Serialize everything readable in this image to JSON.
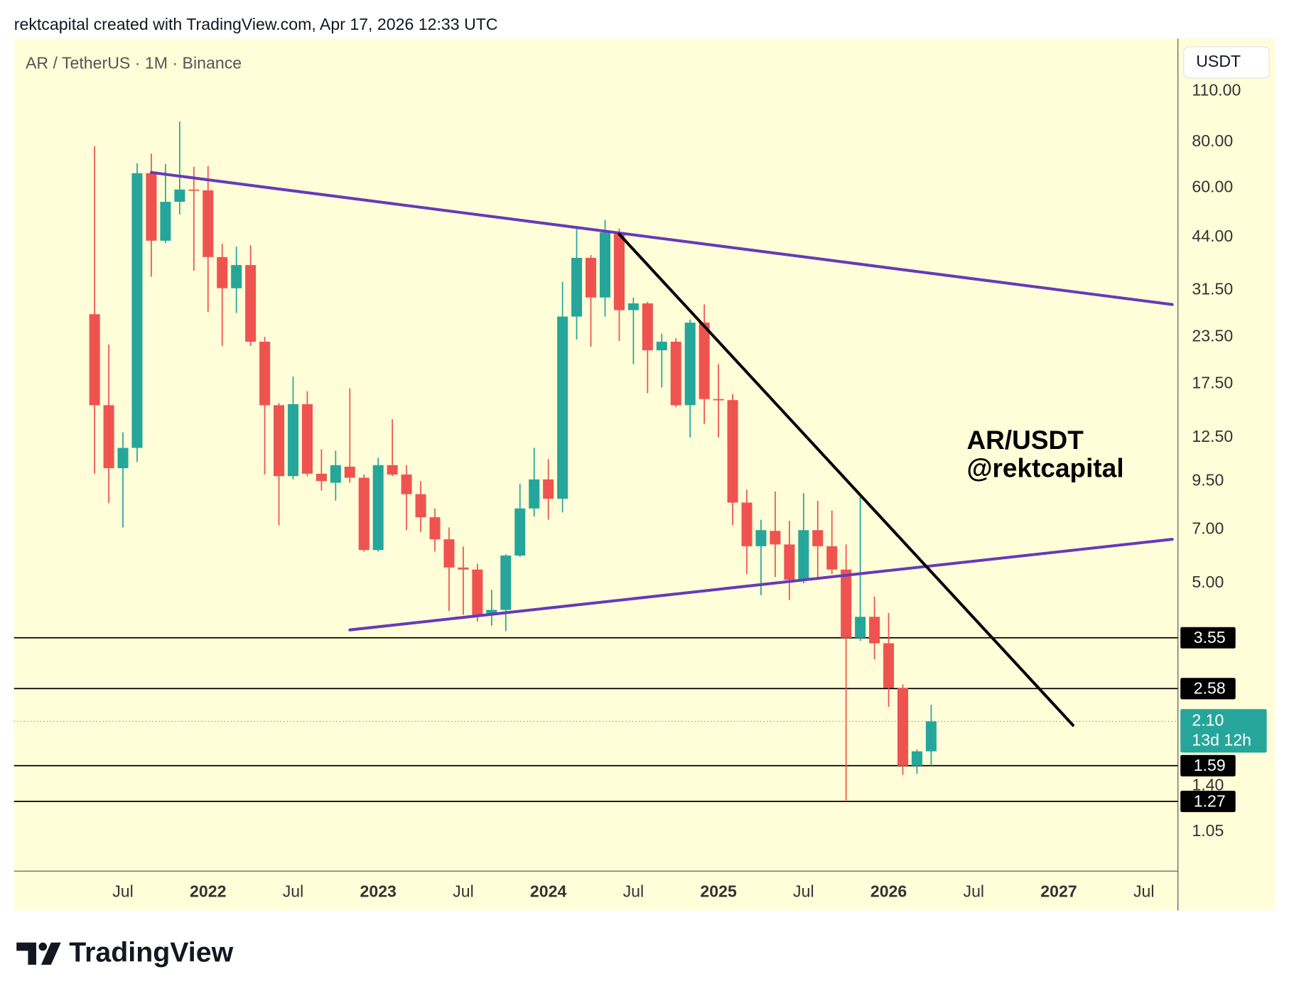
{
  "header": "rektcapital created with TradingView.com, Apr 17, 2026 12:33 UTC",
  "footer": "TradingView",
  "chart_data": {
    "type": "candlestick",
    "symbol": "AR / TetherUS · 1M · Binance",
    "currency": "USDT",
    "annotation": [
      "AR/USDT",
      "@rektcapital"
    ],
    "log_scale": true,
    "grid": false,
    "up_color": "#26a69a",
    "down_color": "#ef5350",
    "x": [
      "2021-05",
      "2021-06",
      "2021-07",
      "2021-08",
      "2021-09",
      "2021-10",
      "2021-11",
      "2021-12",
      "2022-01",
      "2022-02",
      "2022-03",
      "2022-04",
      "2022-05",
      "2022-06",
      "2022-07",
      "2022-08",
      "2022-09",
      "2022-10",
      "2022-11",
      "2022-12",
      "2023-01",
      "2023-02",
      "2023-03",
      "2023-04",
      "2023-05",
      "2023-06",
      "2023-07",
      "2023-08",
      "2023-09",
      "2023-10",
      "2023-11",
      "2023-12",
      "2024-01",
      "2024-02",
      "2024-03",
      "2024-04",
      "2024-05",
      "2024-06",
      "2024-07",
      "2024-08",
      "2024-09",
      "2024-10",
      "2024-11",
      "2024-12",
      "2025-01",
      "2025-02",
      "2025-03",
      "2025-04",
      "2025-05",
      "2025-06",
      "2025-07",
      "2025-08",
      "2025-09",
      "2025-10",
      "2025-11",
      "2025-12",
      "2026-01",
      "2026-02",
      "2026-03",
      "2026-04"
    ],
    "open": [
      27.1,
      15.3,
      10.3,
      11.7,
      65.7,
      43,
      54.9,
      59.3,
      59,
      38.8,
      31.9,
      36.9,
      22.8,
      15.3,
      9.8,
      15.4,
      9.95,
      9.4,
      10.4,
      9.7,
      6.16,
      10.5,
      9.9,
      8.75,
      7.57,
      6.59,
      5.52,
      5.45,
      4.14,
      4.23,
      5.95,
      8.0,
      9.6,
      8.5,
      26.7,
      38.6,
      30.1,
      45.3,
      27.8,
      29,
      21.6,
      22.8,
      15.3,
      25.7,
      15.9,
      15.8,
      8.3,
      6.31,
      6.95,
      6.38,
      5.11,
      6.98,
      6.31,
      5.45,
      3.55,
      4.05,
      3.43,
      2.59,
      1.59,
      1.74
    ],
    "high": [
      77.8,
      22.4,
      12.9,
      69.9,
      74.3,
      69.6,
      90.9,
      68.4,
      68.7,
      42.2,
      41.4,
      41.8,
      23.5,
      15.5,
      18.3,
      16.7,
      11.6,
      11.5,
      17.0,
      9.9,
      11.0,
      14.0,
      10.5,
      9.5,
      8.0,
      7.1,
      6.3,
      5.65,
      4.8,
      6.0,
      9.35,
      11.7,
      10.9,
      33.2,
      47.2,
      39.3,
      49,
      46.4,
      30.1,
      29.3,
      24,
      23.3,
      26.2,
      28.8,
      19.8,
      16.4,
      9.0,
      7.45,
      8.9,
      7.4,
      8.8,
      8.4,
      7.9,
      6.38,
      8.6,
      4.6,
      4.15,
      2.65,
      1.76,
      2.33
    ],
    "low": [
      9.95,
      8.27,
      7.1,
      10.7,
      34.3,
      42.4,
      50.7,
      35.6,
      27.5,
      22.2,
      27.3,
      22.2,
      9.9,
      7.2,
      9.6,
      9.8,
      8.95,
      8.4,
      9.4,
      6.1,
      6.1,
      9.8,
      6.98,
      6.9,
      6.1,
      4.2,
      4.1,
      3.93,
      3.83,
      3.7,
      5.9,
      7.6,
      7.45,
      7.8,
      23.1,
      22.1,
      26.7,
      22.9,
      19.8,
      16.5,
      17.1,
      15.1,
      12.5,
      13.6,
      12.5,
      7.2,
      5.3,
      4.64,
      5.2,
      4.5,
      5.0,
      5.15,
      5.3,
      1.27,
      3.48,
      3.1,
      2.3,
      1.5,
      1.51,
      1.59
    ],
    "close": [
      15.3,
      10.3,
      11.7,
      65.7,
      43,
      54.9,
      59.3,
      59,
      38.8,
      31.9,
      36.9,
      22.8,
      15.3,
      9.8,
      15.4,
      9.95,
      9.5,
      10.5,
      9.7,
      6.16,
      10.5,
      9.9,
      8.75,
      7.57,
      6.59,
      5.52,
      5.45,
      4.1,
      4.23,
      5.95,
      8.0,
      9.6,
      8.5,
      26.7,
      38.6,
      30.1,
      45.3,
      27.8,
      29,
      21.6,
      22.8,
      15.3,
      25.7,
      15.9,
      15.8,
      8.3,
      6.31,
      6.98,
      6.38,
      5.11,
      6.98,
      6.31,
      5.45,
      3.55,
      4.05,
      3.43,
      2.59,
      1.59,
      1.74,
      2.1
    ],
    "xlim": [
      "2020-11",
      "2027-09"
    ],
    "xticks": [
      {
        "value": "2021-07",
        "label": "Jul"
      },
      {
        "value": "2022-01",
        "label": "2022"
      },
      {
        "value": "2022-07",
        "label": "Jul"
      },
      {
        "value": "2023-01",
        "label": "2023"
      },
      {
        "value": "2023-07",
        "label": "Jul"
      },
      {
        "value": "2024-01",
        "label": "2024"
      },
      {
        "value": "2024-07",
        "label": "Jul"
      },
      {
        "value": "2025-01",
        "label": "2025"
      },
      {
        "value": "2025-07",
        "label": "Jul"
      },
      {
        "value": "2026-01",
        "label": "2026"
      },
      {
        "value": "2026-07",
        "label": "Jul"
      },
      {
        "value": "2027-01",
        "label": "2027"
      },
      {
        "value": "2027-07",
        "label": "Jul"
      }
    ],
    "ylim": [
      0.82,
      153
    ],
    "yticks": [
      {
        "value": 110,
        "label": "110.00"
      },
      {
        "value": 80,
        "label": "80.00"
      },
      {
        "value": 60,
        "label": "60.00"
      },
      {
        "value": 44,
        "label": "44.00"
      },
      {
        "value": 31.5,
        "label": "31.50"
      },
      {
        "value": 23.5,
        "label": "23.50"
      },
      {
        "value": 17.5,
        "label": "17.50"
      },
      {
        "value": 12.5,
        "label": "12.50"
      },
      {
        "value": 9.5,
        "label": "9.50"
      },
      {
        "value": 7,
        "label": "7.00"
      },
      {
        "value": 5,
        "label": "5.00"
      },
      {
        "value": 1.4,
        "label": "1.40"
      },
      {
        "value": 1.05,
        "label": "1.05"
      }
    ],
    "levels": [
      3.55,
      2.58,
      1.59,
      1.27
    ],
    "level_color": "#000000",
    "last_price": {
      "value": 2.1,
      "label": "2.10"
    },
    "countdown": "13d 12h",
    "trendlines": [
      {
        "color": "#673ab7",
        "points": [
          [
            "2021-09",
            66.0
          ],
          [
            "2027-09",
            28.8
          ]
        ]
      },
      {
        "color": "#673ab7",
        "points": [
          [
            "2022-11",
            3.73
          ],
          [
            "2027-09",
            6.59
          ]
        ]
      },
      {
        "color": "#000000",
        "points": [
          [
            "2024-06",
            44.8
          ],
          [
            "2027-02",
            2.05
          ]
        ]
      }
    ]
  }
}
